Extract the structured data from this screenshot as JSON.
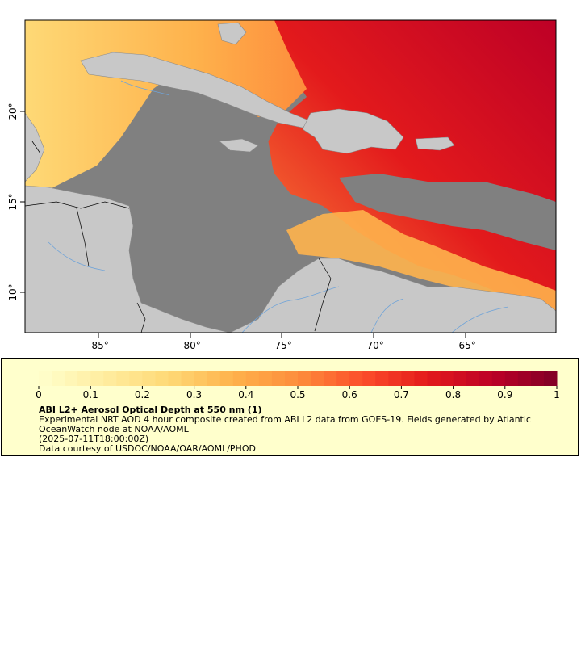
{
  "map": {
    "x_ticks": [
      "-85°",
      "-80°",
      "-75°",
      "-70°",
      "-65°"
    ],
    "y_ticks": [
      "20°",
      "15°",
      "10°"
    ],
    "colors": {
      "ocean_no_data": "#808080",
      "land": "#c8c8c8",
      "rivers": "#6fa3d8",
      "borders": "#000000"
    }
  },
  "legend": {
    "colorbar_ticks": [
      "0",
      "0.1",
      "0.2",
      "0.3",
      "0.4",
      "0.5",
      "0.6",
      "0.7",
      "0.8",
      "0.9",
      "1"
    ],
    "colormap": [
      "#ffffcc",
      "#ffeda0",
      "#fed976",
      "#feb24c",
      "#fd8d3c",
      "#fc4e2a",
      "#e31a1c",
      "#bd0026",
      "#800026"
    ],
    "title": "ABI L2+ Aerosol Optical Depth at 550 nm (1)",
    "description": "Experimental NRT AOD 4 hour composite created from ABI L2 data from GOES-19. Fields generated by Atlantic OceanWatch node at NOAA/AOML",
    "time": "(2025-07-11T18:00:00Z)",
    "credit": "Data courtesy of USDOC/NOAA/OAR/AOML/PHOD"
  }
}
